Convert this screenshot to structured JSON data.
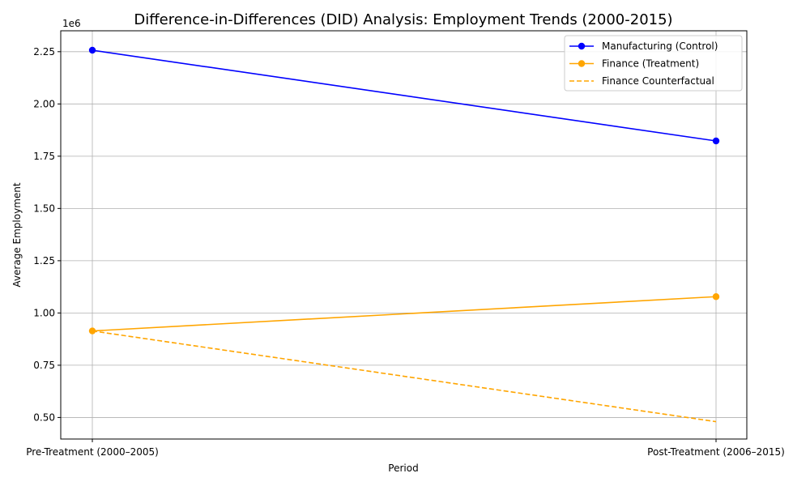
{
  "chart_data": {
    "type": "line",
    "title": "Difference-in-Differences (DID) Analysis: Employment Trends (2000-2015)",
    "xlabel": "Period",
    "ylabel": "Average Employment",
    "y_offset_label": "1e6",
    "categories": [
      "Pre-Treatment (2000–2005)",
      "Post-Treatment (2006–2015)"
    ],
    "y_ticks": [
      "0.50",
      "0.75",
      "1.00",
      "1.25",
      "1.50",
      "1.75",
      "2.00",
      "2.25"
    ],
    "y_tick_values": [
      500000,
      750000,
      1000000,
      1250000,
      1500000,
      1750000,
      2000000,
      2250000
    ],
    "ylim": [
      397000,
      2350000
    ],
    "grid": true,
    "legend_position": "upper right",
    "series": [
      {
        "name": "Manufacturing (Control)",
        "values": [
          2257000,
          1823000
        ],
        "color": "#0000ff",
        "style": "solid",
        "markers": true
      },
      {
        "name": "Finance (Treatment)",
        "values": [
          914000,
          1078000
        ],
        "color": "#ffa500",
        "style": "solid",
        "markers": true
      },
      {
        "name": "Finance Counterfactual",
        "values": [
          914000,
          480000
        ],
        "color": "#ffa500",
        "style": "dashed",
        "markers": false
      }
    ]
  }
}
